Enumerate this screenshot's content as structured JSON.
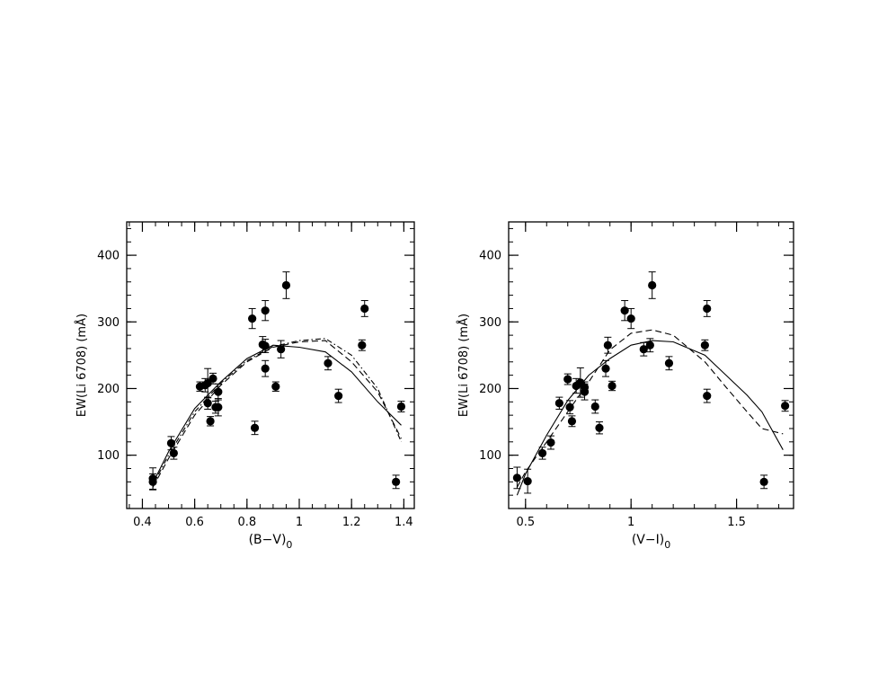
{
  "figure": {
    "panels_label": "Li 6708 equivalent width vs colour index"
  },
  "chart_data": [
    {
      "type": "scatter",
      "xlabel": "(B−V)",
      "xlabel_sub": "0",
      "ylabel": "EW(Li 6708) (mÅ)",
      "xlim": [
        0.34,
        1.44
      ],
      "ylim": [
        20,
        450
      ],
      "xticks": [
        0.4,
        0.6,
        0.8,
        1.0,
        1.2,
        1.4
      ],
      "xtick_labels": [
        "0.4",
        "0.6",
        "0.8",
        "1",
        "1.2",
        "1.4"
      ],
      "yticks": [
        100,
        200,
        300,
        400
      ],
      "ytick_labels": [
        "100",
        "200",
        "300",
        "400"
      ],
      "grid": false,
      "points": [
        {
          "x": 0.44,
          "y": 65,
          "err": 16
        },
        {
          "x": 0.44,
          "y": 60,
          "err": 12
        },
        {
          "x": 0.51,
          "y": 118,
          "err": 10
        },
        {
          "x": 0.52,
          "y": 103,
          "err": 9
        },
        {
          "x": 0.62,
          "y": 203,
          "err": 7
        },
        {
          "x": 0.64,
          "y": 205,
          "err": 10
        },
        {
          "x": 0.65,
          "y": 178,
          "err": 9
        },
        {
          "x": 0.65,
          "y": 208,
          "err": 22
        },
        {
          "x": 0.66,
          "y": 151,
          "err": 7
        },
        {
          "x": 0.67,
          "y": 215,
          "err": 8
        },
        {
          "x": 0.68,
          "y": 172,
          "err": 9
        },
        {
          "x": 0.69,
          "y": 195,
          "err": 12
        },
        {
          "x": 0.69,
          "y": 172,
          "err": 13
        },
        {
          "x": 0.82,
          "y": 305,
          "err": 15
        },
        {
          "x": 0.83,
          "y": 141,
          "err": 10
        },
        {
          "x": 0.86,
          "y": 266,
          "err": 12
        },
        {
          "x": 0.87,
          "y": 264,
          "err": 10
        },
        {
          "x": 0.87,
          "y": 317,
          "err": 15
        },
        {
          "x": 0.87,
          "y": 230,
          "err": 12
        },
        {
          "x": 0.91,
          "y": 203,
          "err": 7
        },
        {
          "x": 0.93,
          "y": 259,
          "err": 13
        },
        {
          "x": 0.95,
          "y": 355,
          "err": 20
        },
        {
          "x": 1.11,
          "y": 238,
          "err": 10
        },
        {
          "x": 1.15,
          "y": 189,
          "err": 10
        },
        {
          "x": 1.24,
          "y": 265,
          "err": 8
        },
        {
          "x": 1.25,
          "y": 320,
          "err": 12
        },
        {
          "x": 1.37,
          "y": 60,
          "err": 10
        },
        {
          "x": 1.39,
          "y": 173,
          "err": 8
        }
      ],
      "curves": [
        {
          "style": "solid",
          "x": [
            0.44,
            0.5,
            0.6,
            0.7,
            0.8,
            0.9,
            1.0,
            1.1,
            1.2,
            1.3,
            1.39
          ],
          "y": [
            58,
            105,
            170,
            210,
            245,
            265,
            262,
            255,
            225,
            180,
            145
          ]
        },
        {
          "style": "dashed",
          "x": [
            0.44,
            0.5,
            0.6,
            0.7,
            0.8,
            0.9,
            1.0,
            1.1,
            1.2,
            1.3,
            1.39
          ],
          "y": [
            52,
            95,
            160,
            205,
            240,
            262,
            270,
            272,
            240,
            195,
            125
          ]
        },
        {
          "style": "dashdot",
          "x": [
            0.44,
            0.5,
            0.6,
            0.7,
            0.8,
            0.9,
            1.0,
            1.1,
            1.2,
            1.3,
            1.39
          ],
          "y": [
            55,
            100,
            165,
            208,
            242,
            263,
            272,
            275,
            250,
            200,
            120
          ]
        }
      ]
    },
    {
      "type": "scatter",
      "xlabel": "(V−I)",
      "xlabel_sub": "0",
      "ylabel": "EW(Li 6708) (mÅ)",
      "xlim": [
        0.42,
        1.77
      ],
      "ylim": [
        20,
        450
      ],
      "xticks": [
        0.5,
        1.0,
        1.5
      ],
      "xtick_labels": [
        "0.5",
        "1",
        "1.5"
      ],
      "yticks": [
        100,
        200,
        300,
        400
      ],
      "ytick_labels": [
        "100",
        "200",
        "300",
        "400"
      ],
      "grid": false,
      "points": [
        {
          "x": 0.46,
          "y": 66,
          "err": 16
        },
        {
          "x": 0.51,
          "y": 61,
          "err": 18
        },
        {
          "x": 0.58,
          "y": 103,
          "err": 9
        },
        {
          "x": 0.62,
          "y": 119,
          "err": 10
        },
        {
          "x": 0.66,
          "y": 178,
          "err": 9
        },
        {
          "x": 0.7,
          "y": 214,
          "err": 8
        },
        {
          "x": 0.71,
          "y": 172,
          "err": 10
        },
        {
          "x": 0.72,
          "y": 151,
          "err": 8
        },
        {
          "x": 0.74,
          "y": 204,
          "err": 11
        },
        {
          "x": 0.76,
          "y": 209,
          "err": 22
        },
        {
          "x": 0.78,
          "y": 202,
          "err": 8
        },
        {
          "x": 0.78,
          "y": 195,
          "err": 12
        },
        {
          "x": 0.83,
          "y": 173,
          "err": 10
        },
        {
          "x": 0.85,
          "y": 141,
          "err": 9
        },
        {
          "x": 0.88,
          "y": 230,
          "err": 12
        },
        {
          "x": 0.89,
          "y": 265,
          "err": 12
        },
        {
          "x": 0.91,
          "y": 204,
          "err": 7
        },
        {
          "x": 0.97,
          "y": 317,
          "err": 15
        },
        {
          "x": 1.0,
          "y": 305,
          "err": 15
        },
        {
          "x": 1.06,
          "y": 259,
          "err": 10
        },
        {
          "x": 1.09,
          "y": 265,
          "err": 10
        },
        {
          "x": 1.1,
          "y": 355,
          "err": 20
        },
        {
          "x": 1.18,
          "y": 238,
          "err": 10
        },
        {
          "x": 1.35,
          "y": 265,
          "err": 8
        },
        {
          "x": 1.36,
          "y": 320,
          "err": 12
        },
        {
          "x": 1.36,
          "y": 189,
          "err": 10
        },
        {
          "x": 1.63,
          "y": 60,
          "err": 10
        },
        {
          "x": 1.73,
          "y": 174,
          "err": 8
        }
      ],
      "curves": [
        {
          "style": "solid",
          "x": [
            0.46,
            0.5,
            0.6,
            0.7,
            0.8,
            0.9,
            1.0,
            1.1,
            1.2,
            1.35,
            1.45,
            1.55,
            1.62,
            1.72
          ],
          "y": [
            40,
            72,
            130,
            182,
            220,
            245,
            265,
            272,
            270,
            250,
            220,
            190,
            165,
            108
          ]
        },
        {
          "style": "dashed",
          "x": [
            0.46,
            0.5,
            0.6,
            0.7,
            0.8,
            0.9,
            1.0,
            1.1,
            1.2,
            1.35,
            1.45,
            1.55,
            1.62,
            1.72
          ],
          "y": [
            52,
            75,
            120,
            165,
            210,
            258,
            283,
            288,
            280,
            240,
            202,
            165,
            140,
            132
          ]
        }
      ]
    }
  ]
}
